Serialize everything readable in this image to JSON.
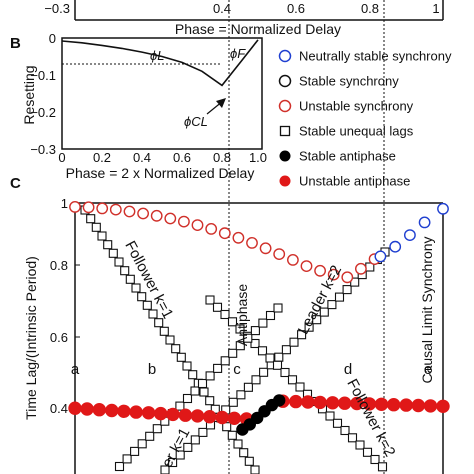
{
  "panels": {
    "A": {
      "letter": ""
    },
    "B": {
      "letter": "B"
    },
    "C": {
      "letter": "C"
    }
  },
  "chart_data": [
    {
      "id": "panel-a-fragment",
      "type": "line",
      "ytick_labels": [
        "−0.3"
      ],
      "xtick_labels": [
        "0.4",
        "0.6",
        "0.8",
        "1"
      ],
      "xlabel": "Phase = Normalized Delay"
    },
    {
      "id": "panel-b",
      "type": "line",
      "title": "",
      "xlabel": "Phase = 2 x Normalized Delay",
      "ylabel": "Resetting",
      "xlim": [
        0,
        1
      ],
      "ylim": [
        -0.3,
        0
      ],
      "xticks": [
        "0",
        "0.2",
        "0.4",
        "0.6",
        "0.8",
        "1.0"
      ],
      "yticks": [
        "0",
        "−0.1",
        "−0.2",
        "−0.3"
      ],
      "series": [
        {
          "x": [
            0.0,
            0.1,
            0.2,
            0.3,
            0.4,
            0.5,
            0.6,
            0.7,
            0.8,
            0.9,
            0.98
          ],
          "y": [
            -0.008,
            -0.013,
            -0.02,
            -0.028,
            -0.038,
            -0.05,
            -0.066,
            -0.09,
            -0.128,
            -0.06,
            -0.005
          ]
        }
      ],
      "annotations": [
        "ϕL",
        "ϕF",
        "ϕCL"
      ]
    },
    {
      "id": "panel-c",
      "type": "scatter",
      "ylabel": "Time Lag/(Intrinsic Period)",
      "ytick_labels": [
        "1",
        "0.8",
        "0.6",
        "0.4"
      ],
      "ylim": [
        0.3,
        1.0
      ],
      "xlim": [
        0,
        1
      ],
      "text_labels": {
        "follower_k1": "Follower k=1",
        "follower_k2": "Follower k=2",
        "leader_k2": "Leader k=2",
        "leader_k1_frag": "er k=1",
        "antiphase": "Antiphase",
        "causal": "Causal Limit Synchrony",
        "regions": [
          "a",
          "b",
          "c",
          "d",
          "e"
        ]
      },
      "series": [
        {
          "name": "Unstable synchrony",
          "x": [
            0.0,
            0.037,
            0.074,
            0.111,
            0.148,
            0.185,
            0.222,
            0.259,
            0.296,
            0.333,
            0.37,
            0.407,
            0.444,
            0.481,
            0.518,
            0.555,
            0.592,
            0.629,
            0.666,
            0.703,
            0.74,
            0.777,
            0.814
          ],
          "y": [
            0.99,
            0.989,
            0.986,
            0.983,
            0.978,
            0.973,
            0.967,
            0.96,
            0.952,
            0.943,
            0.933,
            0.922,
            0.91,
            0.897,
            0.883,
            0.868,
            0.853,
            0.837,
            0.825,
            0.815,
            0.808,
            0.83,
            0.855
          ]
        },
        {
          "name": "Neutrally stable synchrony",
          "x": [
            0.83,
            0.87,
            0.91,
            0.95,
            1.0
          ],
          "y": [
            0.862,
            0.887,
            0.917,
            0.95,
            0.985
          ]
        },
        {
          "name": "Unstable antiphase (left)",
          "x": [
            0.0,
            0.033,
            0.066,
            0.1,
            0.133,
            0.166,
            0.2,
            0.233,
            0.266,
            0.3,
            0.333,
            0.366,
            0.4,
            0.433,
            0.466
          ],
          "y": [
            0.47,
            0.468,
            0.466,
            0.464,
            0.462,
            0.46,
            0.458,
            0.456,
            0.454,
            0.452,
            0.45,
            0.448,
            0.446,
            0.444,
            0.442
          ]
        },
        {
          "name": "Unstable antiphase (right)",
          "x": [
            0.565,
            0.6,
            0.633,
            0.666,
            0.7,
            0.733,
            0.766,
            0.8,
            0.833,
            0.866,
            0.9,
            0.933,
            0.966,
            1.0
          ],
          "y": [
            0.488,
            0.487,
            0.486,
            0.485,
            0.484,
            0.483,
            0.482,
            0.481,
            0.48,
            0.479,
            0.478,
            0.477,
            0.476,
            0.475
          ]
        },
        {
          "name": "Stable antiphase",
          "x": [
            0.455,
            0.475,
            0.495,
            0.515,
            0.535,
            0.555
          ],
          "y": [
            0.415,
            0.428,
            0.445,
            0.462,
            0.478,
            0.49
          ]
        }
      ]
    }
  ],
  "legend": [
    {
      "label": "Neutrally stable synchrony",
      "marker": "open-circle",
      "color": "#1f3fd0"
    },
    {
      "label": "Stable synchrony",
      "marker": "open-circle",
      "color": "#111111"
    },
    {
      "label": "Unstable synchrony",
      "marker": "open-circle",
      "color": "#d0302a"
    },
    {
      "label": "Stable unequal lags",
      "marker": "open-square",
      "color": "#111111"
    },
    {
      "label": "Stable antiphase",
      "marker": "filled-circle",
      "color": "#000000"
    },
    {
      "label": "Unstable antiphase",
      "marker": "filled-circle",
      "color": "#e01818"
    }
  ],
  "colors": {
    "blue": "#1f3fd0",
    "red": "#d0302a",
    "redFill": "#e01818",
    "black": "#111111"
  }
}
